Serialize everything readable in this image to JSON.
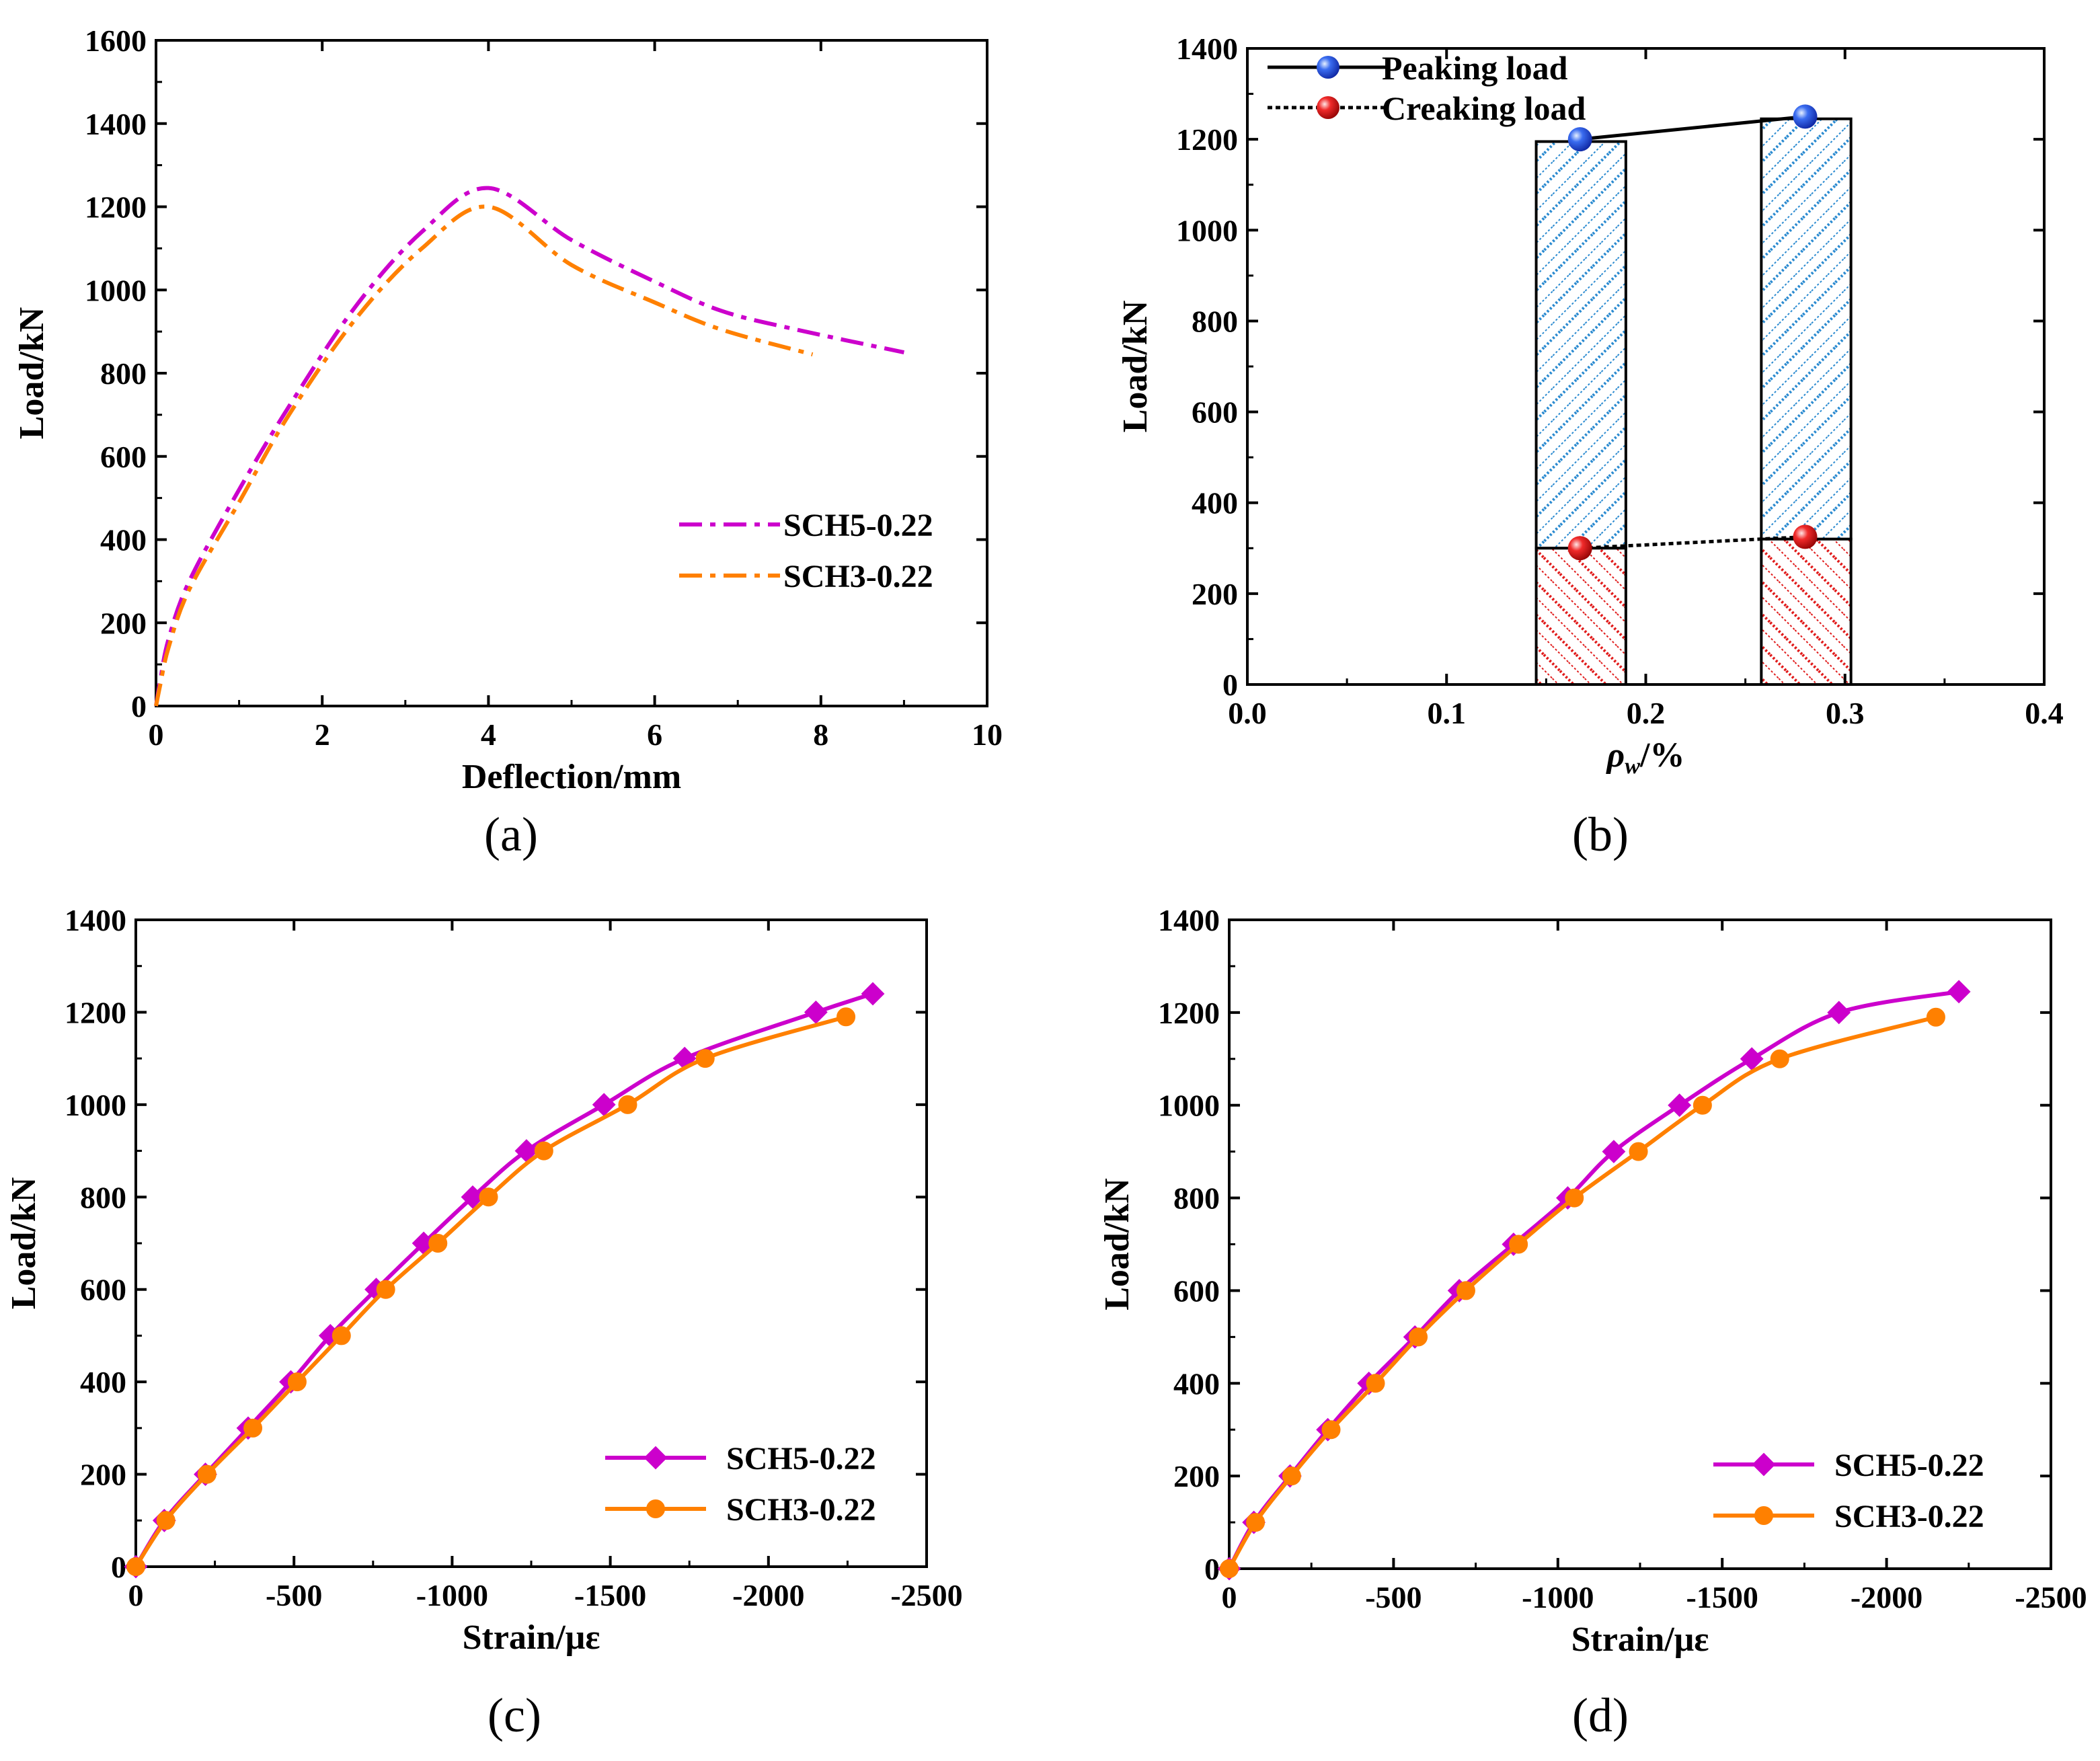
{
  "chart_data": [
    {
      "type": "line",
      "panel": "(a)",
      "title": "",
      "xlabel": "Deflection/mm",
      "ylabel": "Load/kN",
      "xlim": [
        0,
        10
      ],
      "ylim": [
        0,
        1600
      ],
      "xticks": [
        0,
        2,
        4,
        6,
        8,
        10
      ],
      "yticks": [
        0,
        200,
        400,
        600,
        800,
        1000,
        1200,
        1400,
        1600
      ],
      "legend_position": "center-right",
      "series": [
        {
          "name": "SCH5-0.22",
          "color": "#cc00cc",
          "style": "dash-dot",
          "points": [
            [
              0,
              0
            ],
            [
              0.05,
              60
            ],
            [
              0.15,
              160
            ],
            [
              0.4,
              300
            ],
            [
              1,
              520
            ],
            [
              1.6,
              720
            ],
            [
              2.4,
              960
            ],
            [
              3.2,
              1140
            ],
            [
              4,
              1245
            ],
            [
              5,
              1120
            ],
            [
              6,
              1020
            ],
            [
              6.8,
              950
            ],
            [
              7.7,
              905
            ],
            [
              9,
              850
            ]
          ]
        },
        {
          "name": "SCH3-0.22",
          "color": "#ff8000",
          "style": "dash-dot",
          "points": [
            [
              0,
              0
            ],
            [
              0.05,
              50
            ],
            [
              0.15,
              140
            ],
            [
              0.4,
              280
            ],
            [
              1,
              490
            ],
            [
              1.6,
              700
            ],
            [
              2.4,
              930
            ],
            [
              3.2,
              1100
            ],
            [
              4,
              1200
            ],
            [
              5,
              1060
            ],
            [
              6,
              970
            ],
            [
              6.8,
              905
            ],
            [
              7.9,
              845
            ]
          ]
        }
      ]
    },
    {
      "type": "bar",
      "panel": "(b)",
      "title": "",
      "xlabel": "ρw/%",
      "ylabel": "Load/kN",
      "xlim": [
        0,
        0.4
      ],
      "ylim": [
        0,
        1400
      ],
      "xticks": [
        "0.0",
        "0.1",
        "0.2",
        "0.3",
        "0.4"
      ],
      "yticks": [
        0,
        200,
        400,
        600,
        800,
        1000,
        1200,
        1400
      ],
      "legend_position": "top-left",
      "bars": [
        {
          "x_left": 0.145,
          "x_right": 0.19,
          "cracking": 300,
          "peak": 1195
        },
        {
          "x_left": 0.258,
          "x_right": 0.303,
          "cracking": 320,
          "peak": 1245
        }
      ],
      "series": [
        {
          "name": "Peaking load",
          "color": "#1a3fd6",
          "style": "solid",
          "points": [
            [
              0.167,
              1200
            ],
            [
              0.28,
              1250
            ]
          ]
        },
        {
          "name": "Creaking load",
          "color": "#e01010",
          "style": "dotted",
          "points": [
            [
              0.167,
              300
            ],
            [
              0.28,
              325
            ]
          ]
        }
      ]
    },
    {
      "type": "line",
      "panel": "(c)",
      "title": "",
      "xlabel": "Strain/με",
      "ylabel": "Load/kN",
      "xlim": [
        0,
        -2500
      ],
      "ylim": [
        0,
        1400
      ],
      "xticks": [
        0,
        -500,
        -1000,
        -1500,
        -2000,
        -2500
      ],
      "yticks": [
        0,
        200,
        400,
        600,
        800,
        1000,
        1200,
        1400
      ],
      "legend_position": "bottom-right",
      "series": [
        {
          "name": "SCH5-0.22",
          "color": "#cc00cc",
          "marker": "diamond",
          "points": [
            [
              0,
              0
            ],
            [
              -90,
              100
            ],
            [
              -220,
              200
            ],
            [
              -355,
              300
            ],
            [
              -490,
              400
            ],
            [
              -615,
              500
            ],
            [
              -760,
              600
            ],
            [
              -910,
              700
            ],
            [
              -1065,
              800
            ],
            [
              -1235,
              900
            ],
            [
              -1480,
              1000
            ],
            [
              -1735,
              1100
            ],
            [
              -2150,
              1200
            ],
            [
              -2330,
              1240
            ]
          ]
        },
        {
          "name": "SCH3-0.22",
          "color": "#ff8000",
          "marker": "circle",
          "points": [
            [
              0,
              0
            ],
            [
              -95,
              100
            ],
            [
              -225,
              200
            ],
            [
              -370,
              300
            ],
            [
              -510,
              400
            ],
            [
              -650,
              500
            ],
            [
              -790,
              600
            ],
            [
              -955,
              700
            ],
            [
              -1115,
              800
            ],
            [
              -1290,
              900
            ],
            [
              -1555,
              1000
            ],
            [
              -1800,
              1100
            ],
            [
              -2245,
              1190
            ]
          ]
        }
      ]
    },
    {
      "type": "line",
      "panel": "(d)",
      "title": "",
      "xlabel": "Strain/με",
      "ylabel": "Load/kN",
      "xlim": [
        0,
        -2500
      ],
      "ylim": [
        0,
        1400
      ],
      "xticks": [
        0,
        -500,
        -1000,
        -1500,
        -2000,
        -2500
      ],
      "yticks": [
        0,
        200,
        400,
        600,
        800,
        1000,
        1200,
        1400
      ],
      "legend_position": "bottom-right",
      "series": [
        {
          "name": "SCH5-0.22",
          "color": "#cc00cc",
          "marker": "diamond",
          "points": [
            [
              0,
              0
            ],
            [
              -75,
              100
            ],
            [
              -185,
              200
            ],
            [
              -300,
              300
            ],
            [
              -425,
              400
            ],
            [
              -565,
              500
            ],
            [
              -700,
              600
            ],
            [
              -865,
              700
            ],
            [
              -1030,
              800
            ],
            [
              -1170,
              900
            ],
            [
              -1370,
              1000
            ],
            [
              -1590,
              1100
            ],
            [
              -1855,
              1200
            ],
            [
              -2220,
              1245
            ]
          ]
        },
        {
          "name": "SCH3-0.22",
          "color": "#ff8000",
          "marker": "circle",
          "points": [
            [
              0,
              0
            ],
            [
              -80,
              100
            ],
            [
              -190,
              200
            ],
            [
              -310,
              300
            ],
            [
              -445,
              400
            ],
            [
              -575,
              500
            ],
            [
              -720,
              600
            ],
            [
              -880,
              700
            ],
            [
              -1050,
              800
            ],
            [
              -1245,
              900
            ],
            [
              -1440,
              1000
            ],
            [
              -1675,
              1100
            ],
            [
              -2150,
              1190
            ]
          ]
        }
      ]
    }
  ]
}
